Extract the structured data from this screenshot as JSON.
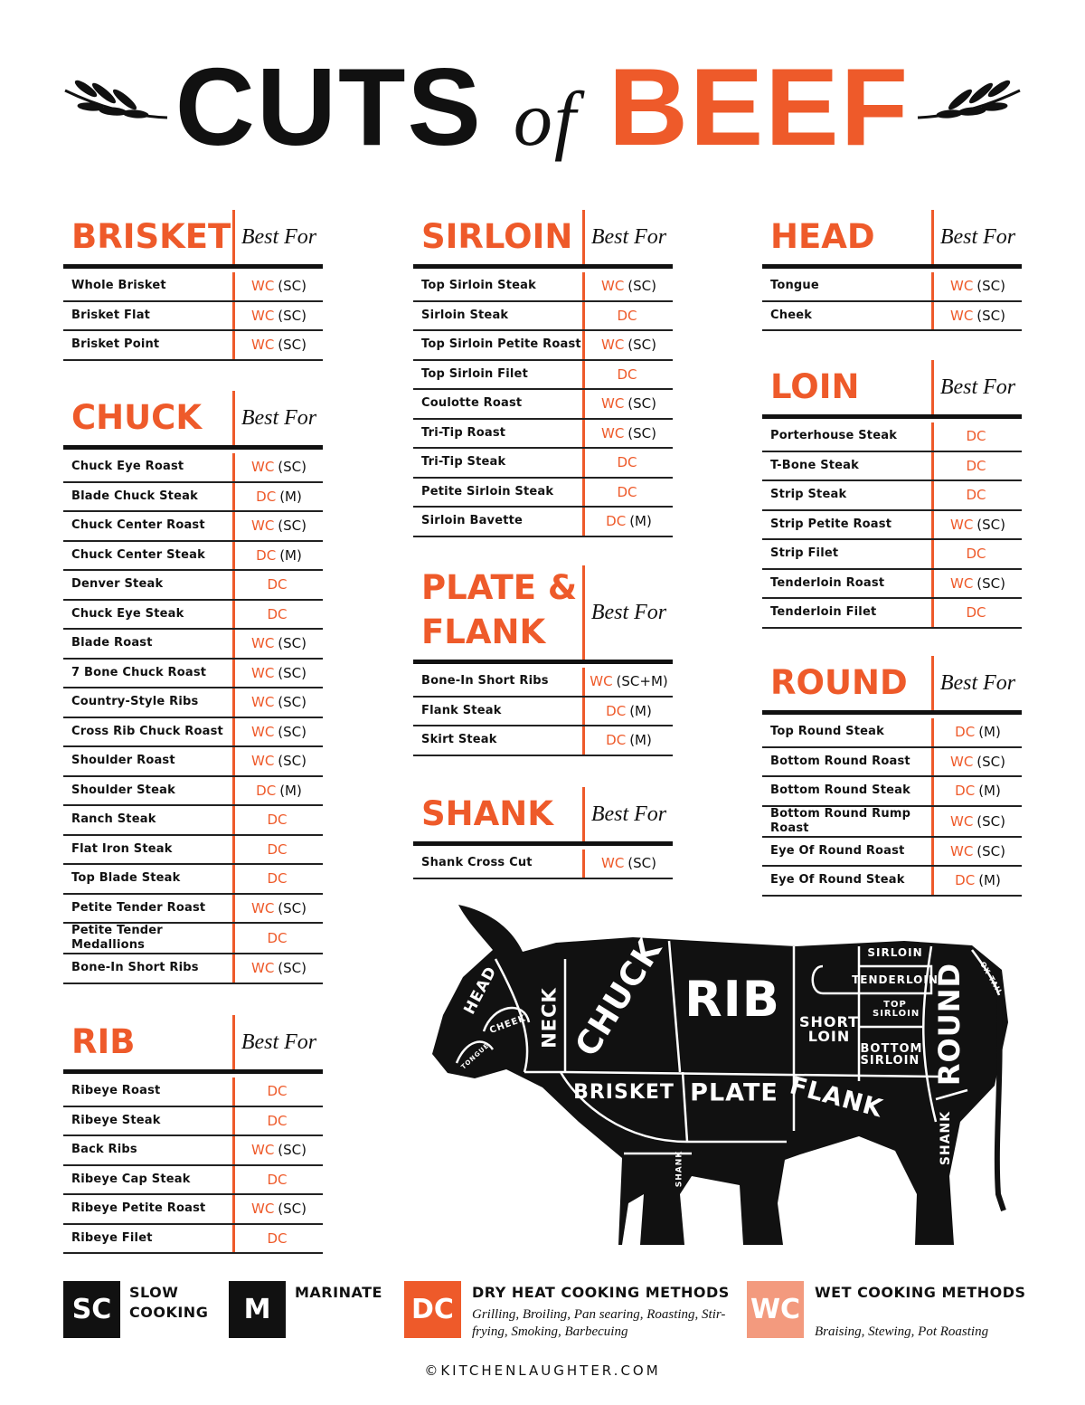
{
  "header": {
    "title_1": "CUTS",
    "title_2": "of",
    "title_3": "BEEF"
  },
  "sections": [
    {
      "name": "BRISKET",
      "column_header": "Best For",
      "rows": [
        {
          "cut": "Whole Brisket",
          "method": "WC",
          "note": "(SC)"
        },
        {
          "cut": "Brisket Flat",
          "method": "WC",
          "note": "(SC)"
        },
        {
          "cut": "Brisket Point",
          "method": "WC",
          "note": "(SC)"
        }
      ]
    },
    {
      "name": "CHUCK",
      "column_header": "Best For",
      "rows": [
        {
          "cut": "Chuck Eye Roast",
          "method": "WC",
          "note": "(SC)"
        },
        {
          "cut": "Blade Chuck Steak",
          "method": "DC",
          "note": "(M)"
        },
        {
          "cut": "Chuck Center Roast",
          "method": "WC",
          "note": "(SC)"
        },
        {
          "cut": "Chuck Center Steak",
          "method": "DC",
          "note": "(M)"
        },
        {
          "cut": "Denver Steak",
          "method": "DC"
        },
        {
          "cut": "Chuck Eye Steak",
          "method": "DC"
        },
        {
          "cut": "Blade Roast",
          "method": "WC",
          "note": "(SC)"
        },
        {
          "cut": "7 Bone Chuck Roast",
          "method": "WC",
          "note": "(SC)"
        },
        {
          "cut": "Country-Style Ribs",
          "method": "WC",
          "note": "(SC)"
        },
        {
          "cut": "Cross Rib Chuck Roast",
          "method": "WC",
          "note": "(SC)"
        },
        {
          "cut": "Shoulder Roast",
          "method": "WC",
          "note": "(SC)"
        },
        {
          "cut": "Shoulder Steak",
          "method": "DC",
          "note": "(M)"
        },
        {
          "cut": "Ranch Steak",
          "method": "DC"
        },
        {
          "cut": "Flat Iron Steak",
          "method": "DC"
        },
        {
          "cut": "Top Blade Steak",
          "method": "DC"
        },
        {
          "cut": "Petite Tender Roast",
          "method": "WC",
          "note": "(SC)"
        },
        {
          "cut": "Petite Tender Medallions",
          "method": "DC"
        },
        {
          "cut": "Bone-In Short Ribs",
          "method": "WC",
          "note": "(SC)"
        }
      ]
    },
    {
      "name": "RIB",
      "column_header": "Best For",
      "rows": [
        {
          "cut": "Ribeye Roast",
          "method": "DC"
        },
        {
          "cut": "Ribeye Steak",
          "method": "DC"
        },
        {
          "cut": "Back Ribs",
          "method": "WC",
          "note": "(SC)"
        },
        {
          "cut": "Ribeye Cap Steak",
          "method": "DC"
        },
        {
          "cut": "Ribeye Petite Roast",
          "method": "WC",
          "note": "(SC)"
        },
        {
          "cut": "Ribeye Filet",
          "method": "DC"
        }
      ]
    },
    {
      "name": "SIRLOIN",
      "column_header": "Best For",
      "rows": [
        {
          "cut": "Top Sirloin Steak",
          "method": "WC",
          "note": "(SC)"
        },
        {
          "cut": "Sirloin Steak",
          "method": "DC"
        },
        {
          "cut": "Top Sirloin Petite Roast",
          "method": "WC",
          "note": "(SC)"
        },
        {
          "cut": "Top Sirloin Filet",
          "method": "DC"
        },
        {
          "cut": "Coulotte Roast",
          "method": "WC",
          "note": "(SC)"
        },
        {
          "cut": "Tri-Tip Roast",
          "method": "WC",
          "note": "(SC)"
        },
        {
          "cut": "Tri-Tip Steak",
          "method": "DC"
        },
        {
          "cut": "Petite Sirloin Steak",
          "method": "DC"
        },
        {
          "cut": "Sirloin Bavette",
          "method": "DC",
          "note": "(M)"
        }
      ]
    },
    {
      "name": "PLATE & FLANK",
      "column_header": "Best For",
      "rows": [
        {
          "cut": "Bone-In Short Ribs",
          "method": "WC",
          "note": "(SC+M)"
        },
        {
          "cut": "Flank Steak",
          "method": "DC",
          "note": "(M)"
        },
        {
          "cut": "Skirt Steak",
          "method": "DC",
          "note": "(M)"
        }
      ]
    },
    {
      "name": "SHANK",
      "column_header": "Best For",
      "rows": [
        {
          "cut": "Shank Cross Cut",
          "method": "WC",
          "note": "(SC)"
        }
      ]
    },
    {
      "name": "HEAD",
      "column_header": "Best For",
      "rows": [
        {
          "cut": "Tongue",
          "method": "WC",
          "note": "(SC)"
        },
        {
          "cut": "Cheek",
          "method": "WC",
          "note": "(SC)"
        }
      ]
    },
    {
      "name": "LOIN",
      "column_header": "Best For",
      "rows": [
        {
          "cut": "Porterhouse Steak",
          "method": "DC"
        },
        {
          "cut": "T-Bone Steak",
          "method": "DC"
        },
        {
          "cut": "Strip Steak",
          "method": "DC"
        },
        {
          "cut": "Strip Petite Roast",
          "method": "WC",
          "note": "(SC)"
        },
        {
          "cut": "Strip Filet",
          "method": "DC"
        },
        {
          "cut": "Tenderloin Roast",
          "method": "WC",
          "note": "(SC)"
        },
        {
          "cut": "Tenderloin Filet",
          "method": "DC"
        }
      ]
    },
    {
      "name": "ROUND",
      "column_header": "Best For",
      "rows": [
        {
          "cut": "Top Round Steak",
          "method": "DC",
          "note": "(M)"
        },
        {
          "cut": "Bottom Round Roast",
          "method": "WC",
          "note": "(SC)"
        },
        {
          "cut": "Bottom Round Steak",
          "method": "DC",
          "note": "(M)"
        },
        {
          "cut": "Bottom Round Rump Roast",
          "method": "WC",
          "note": "(SC)"
        },
        {
          "cut": "Eye Of Round Roast",
          "method": "WC",
          "note": "(SC)"
        },
        {
          "cut": "Eye Of Round Steak",
          "method": "DC",
          "note": "(M)"
        }
      ]
    }
  ],
  "diagram": {
    "labels": [
      "HEAD",
      "CHEEK",
      "TONGUE",
      "NECK",
      "CHUCK",
      "RIB",
      "SIRLOIN",
      "TENDERLOIN",
      "TOP SIRLOIN",
      "SHORT LOIN",
      "BOTTOM SIRLOIN",
      "ROUND",
      "OX TAIL",
      "BRISKET",
      "PLATE",
      "FLANK",
      "SHANK",
      "SHANK"
    ]
  },
  "legend": [
    {
      "code": "SC",
      "label": "SLOW COOKING"
    },
    {
      "code": "M",
      "label": "MARINATE"
    },
    {
      "code": "DC",
      "label": "DRY HEAT COOKING METHODS",
      "description": "Grilling, Broiling, Pan searing, Roasting, Stir-frying, Smoking, Barbecuing"
    },
    {
      "code": "WC",
      "label": "WET COOKING METHODS",
      "description": "Braising, Stewing, Pot Roasting"
    }
  ],
  "footer": "©KITCHENLAUGHTER.COM"
}
